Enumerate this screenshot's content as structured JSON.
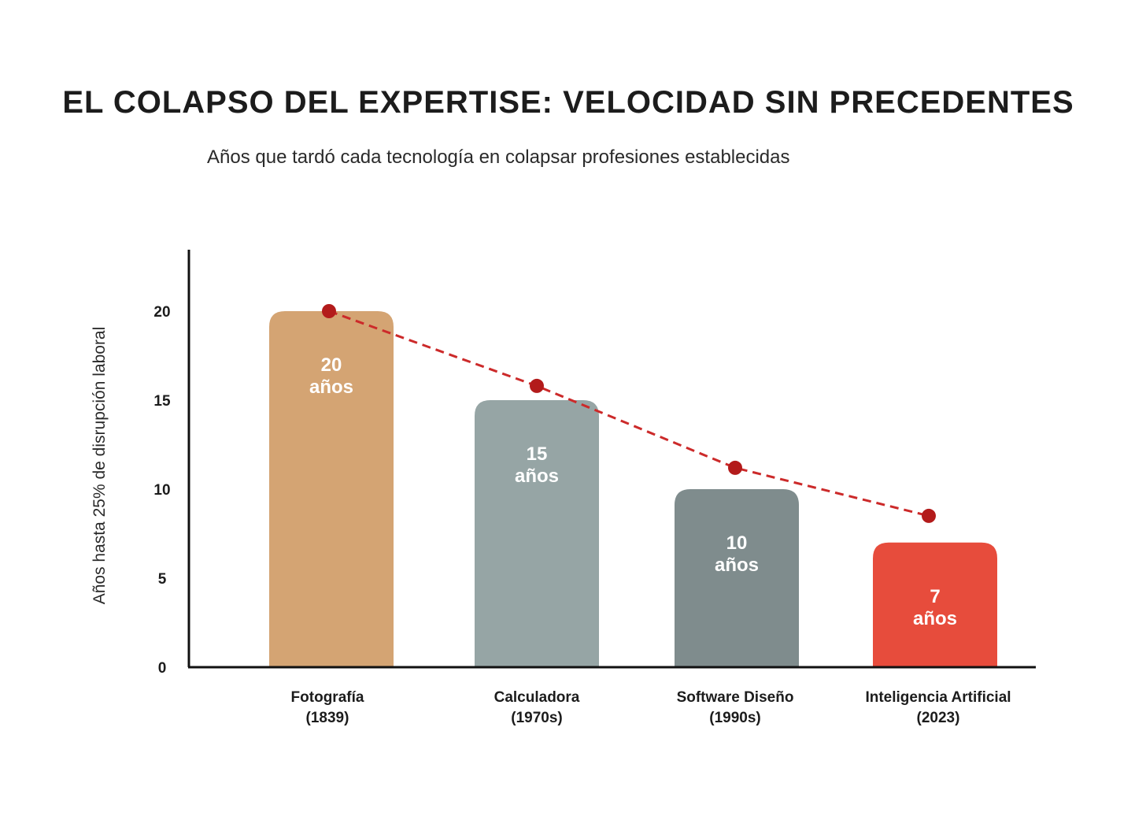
{
  "chart_data": {
    "type": "bar",
    "title": "EL COLAPSO DEL EXPERTISE: VELOCIDAD SIN PRECEDENTES",
    "subtitle": "Años que tardó cada tecnología en colapsar profesiones establecidas",
    "ylabel": "Años hasta 25% de disrupción laboral",
    "xlabel": "",
    "ylim": [
      0,
      22.5
    ],
    "yticks": [
      0,
      5,
      10,
      15,
      20
    ],
    "categories": [
      {
        "name": "Fotografía",
        "period": "(1839)"
      },
      {
        "name": "Calculadora",
        "period": "(1970s)"
      },
      {
        "name": "Software Diseño",
        "period": "(1990s)"
      },
      {
        "name": "Inteligencia Artificial",
        "period": "(2023)"
      }
    ],
    "values": [
      20,
      15,
      10,
      7
    ],
    "bar_labels": [
      {
        "value": "20",
        "unit": "años"
      },
      {
        "value": "15",
        "unit": "años"
      },
      {
        "value": "10",
        "unit": "años"
      },
      {
        "value": "7",
        "unit": "años"
      }
    ],
    "bar_colors": [
      "#d4a473",
      "#96a5a5",
      "#7f8c8d",
      "#e74c3c"
    ],
    "trend_line": {
      "style": "dashed",
      "color": "#cc2a2a",
      "marker_color": "#b31b1b",
      "points": [
        20,
        15.8,
        11.2,
        8.5
      ]
    }
  }
}
